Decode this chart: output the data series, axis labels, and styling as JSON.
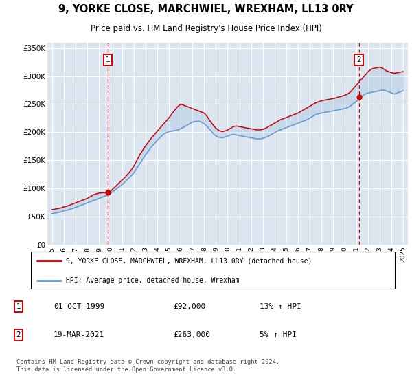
{
  "title": "9, YORKE CLOSE, MARCHWIEL, WREXHAM, LL13 0RY",
  "subtitle": "Price paid vs. HM Land Registry's House Price Index (HPI)",
  "background_color": "#ffffff",
  "plot_bg_color": "#dce6f1",
  "grid_color": "#ffffff",
  "sale1_date": "01-OCT-1999",
  "sale1_price": 92000,
  "sale1_hpi": "13%",
  "sale2_date": "19-MAR-2021",
  "sale2_price": 263000,
  "sale2_hpi": "5%",
  "sale1_x": 1999.75,
  "sale2_x": 2021.21,
  "legend_line1": "9, YORKE CLOSE, MARCHWIEL, WREXHAM, LL13 0RY (detached house)",
  "legend_line2": "HPI: Average price, detached house, Wrexham",
  "footer": "Contains HM Land Registry data © Crown copyright and database right 2024.\nThis data is licensed under the Open Government Licence v3.0.",
  "red_color": "#cc0000",
  "blue_color": "#6699cc",
  "hpi_years": [
    1995.0,
    1995.25,
    1995.5,
    1995.75,
    1996.0,
    1996.25,
    1996.5,
    1996.75,
    1997.0,
    1997.25,
    1997.5,
    1997.75,
    1998.0,
    1998.25,
    1998.5,
    1998.75,
    1999.0,
    1999.25,
    1999.5,
    1999.75,
    2000.0,
    2000.25,
    2000.5,
    2000.75,
    2001.0,
    2001.25,
    2001.5,
    2001.75,
    2002.0,
    2002.25,
    2002.5,
    2002.75,
    2003.0,
    2003.25,
    2003.5,
    2003.75,
    2004.0,
    2004.25,
    2004.5,
    2004.75,
    2005.0,
    2005.25,
    2005.5,
    2005.75,
    2006.0,
    2006.25,
    2006.5,
    2006.75,
    2007.0,
    2007.25,
    2007.5,
    2007.75,
    2008.0,
    2008.25,
    2008.5,
    2008.75,
    2009.0,
    2009.25,
    2009.5,
    2009.75,
    2010.0,
    2010.25,
    2010.5,
    2010.75,
    2011.0,
    2011.25,
    2011.5,
    2011.75,
    2012.0,
    2012.25,
    2012.5,
    2012.75,
    2013.0,
    2013.25,
    2013.5,
    2013.75,
    2014.0,
    2014.25,
    2014.5,
    2014.75,
    2015.0,
    2015.25,
    2015.5,
    2015.75,
    2016.0,
    2016.25,
    2016.5,
    2016.75,
    2017.0,
    2017.25,
    2017.5,
    2017.75,
    2018.0,
    2018.25,
    2018.5,
    2018.75,
    2019.0,
    2019.25,
    2019.5,
    2019.75,
    2020.0,
    2020.25,
    2020.5,
    2020.75,
    2021.0,
    2021.25,
    2021.5,
    2021.75,
    2022.0,
    2022.25,
    2022.5,
    2022.75,
    2023.0,
    2023.25,
    2023.5,
    2023.75,
    2024.0,
    2024.25,
    2024.5,
    2024.75,
    2025.0
  ],
  "hpi_values": [
    55000,
    56000,
    57000,
    58000,
    60000,
    61000,
    62500,
    64000,
    66000,
    68000,
    70000,
    72000,
    74000,
    76000,
    78000,
    80000,
    82000,
    84000,
    86000,
    88000,
    91000,
    95000,
    99000,
    103000,
    107000,
    112000,
    117000,
    122000,
    128000,
    136000,
    144000,
    152000,
    160000,
    167000,
    174000,
    180000,
    186000,
    191000,
    196000,
    199000,
    201000,
    202000,
    203000,
    204000,
    206000,
    209000,
    212000,
    215000,
    218000,
    219000,
    220000,
    218000,
    215000,
    210000,
    204000,
    198000,
    193000,
    191000,
    190000,
    191000,
    193000,
    195000,
    196000,
    195000,
    194000,
    193000,
    192000,
    191000,
    190000,
    189000,
    188000,
    188000,
    189000,
    191000,
    193000,
    196000,
    199000,
    202000,
    204000,
    206000,
    208000,
    210000,
    212000,
    214000,
    216000,
    218000,
    220000,
    222000,
    225000,
    228000,
    231000,
    233000,
    234000,
    235000,
    236000,
    237000,
    238000,
    239000,
    240000,
    241000,
    242000,
    244000,
    247000,
    251000,
    255000,
    260000,
    265000,
    268000,
    270000,
    271000,
    272000,
    273000,
    274000,
    275000,
    274000,
    272000,
    270000,
    268000,
    270000,
    272000,
    274000
  ],
  "red_years": [
    1995.0,
    1995.25,
    1995.5,
    1995.75,
    1996.0,
    1996.25,
    1996.5,
    1996.75,
    1997.0,
    1997.25,
    1997.5,
    1997.75,
    1998.0,
    1998.25,
    1998.5,
    1998.75,
    1999.0,
    1999.25,
    1999.5,
    1999.75,
    2000.0,
    2000.25,
    2000.5,
    2000.75,
    2001.0,
    2001.25,
    2001.5,
    2001.75,
    2002.0,
    2002.25,
    2002.5,
    2002.75,
    2003.0,
    2003.25,
    2003.5,
    2003.75,
    2004.0,
    2004.25,
    2004.5,
    2004.75,
    2005.0,
    2005.25,
    2005.5,
    2005.75,
    2006.0,
    2006.25,
    2006.5,
    2006.75,
    2007.0,
    2007.25,
    2007.5,
    2007.75,
    2008.0,
    2008.25,
    2008.5,
    2008.75,
    2009.0,
    2009.25,
    2009.5,
    2009.75,
    2010.0,
    2010.25,
    2010.5,
    2010.75,
    2011.0,
    2011.25,
    2011.5,
    2011.75,
    2012.0,
    2012.25,
    2012.5,
    2012.75,
    2013.0,
    2013.25,
    2013.5,
    2013.75,
    2014.0,
    2014.25,
    2014.5,
    2014.75,
    2015.0,
    2015.25,
    2015.5,
    2015.75,
    2016.0,
    2016.25,
    2016.5,
    2016.75,
    2017.0,
    2017.25,
    2017.5,
    2017.75,
    2018.0,
    2018.25,
    2018.5,
    2018.75,
    2019.0,
    2019.25,
    2019.5,
    2019.75,
    2020.0,
    2020.25,
    2020.5,
    2020.75,
    2021.0,
    2021.25,
    2021.5,
    2021.75,
    2022.0,
    2022.25,
    2022.5,
    2022.75,
    2023.0,
    2023.25,
    2023.5,
    2023.75,
    2024.0,
    2024.25,
    2024.5,
    2024.75,
    2025.0
  ],
  "red_values": [
    62000,
    63000,
    64000,
    65000,
    67000,
    68000,
    70000,
    72000,
    74000,
    76000,
    78000,
    80000,
    82000,
    85000,
    88000,
    90000,
    91500,
    92000,
    92500,
    92000,
    95000,
    100000,
    105000,
    110000,
    115000,
    120000,
    126000,
    132000,
    140000,
    150000,
    160000,
    168000,
    176000,
    183000,
    190000,
    196000,
    202000,
    208000,
    214000,
    220000,
    226000,
    233000,
    240000,
    246000,
    250000,
    248000,
    246000,
    244000,
    242000,
    240000,
    238000,
    236000,
    234000,
    228000,
    220000,
    213000,
    207000,
    203000,
    201000,
    202000,
    204000,
    207000,
    210000,
    211000,
    210000,
    209000,
    208000,
    207000,
    206000,
    205000,
    204000,
    204000,
    205000,
    207000,
    210000,
    213000,
    216000,
    219000,
    222000,
    224000,
    226000,
    228000,
    230000,
    232000,
    234000,
    237000,
    240000,
    243000,
    246000,
    249000,
    252000,
    254000,
    256000,
    257000,
    258000,
    259000,
    260000,
    261000,
    263000,
    264000,
    266000,
    268000,
    272000,
    278000,
    284000,
    290000,
    296000,
    302000,
    308000,
    312000,
    314000,
    315000,
    316000,
    314000,
    310000,
    308000,
    306000,
    305000,
    306000,
    307000,
    308000
  ],
  "ylim": [
    0,
    360000
  ],
  "xlim": [
    1994.6,
    2025.4
  ],
  "yticks": [
    0,
    50000,
    100000,
    150000,
    200000,
    250000,
    300000,
    350000
  ],
  "ytick_labels": [
    "£0",
    "£50K",
    "£100K",
    "£150K",
    "£200K",
    "£250K",
    "£300K",
    "£350K"
  ],
  "xtick_years": [
    1995,
    1996,
    1997,
    1998,
    1999,
    2000,
    2001,
    2002,
    2003,
    2004,
    2005,
    2006,
    2007,
    2008,
    2009,
    2010,
    2011,
    2012,
    2013,
    2014,
    2015,
    2016,
    2017,
    2018,
    2019,
    2020,
    2021,
    2022,
    2023,
    2024,
    2025
  ]
}
